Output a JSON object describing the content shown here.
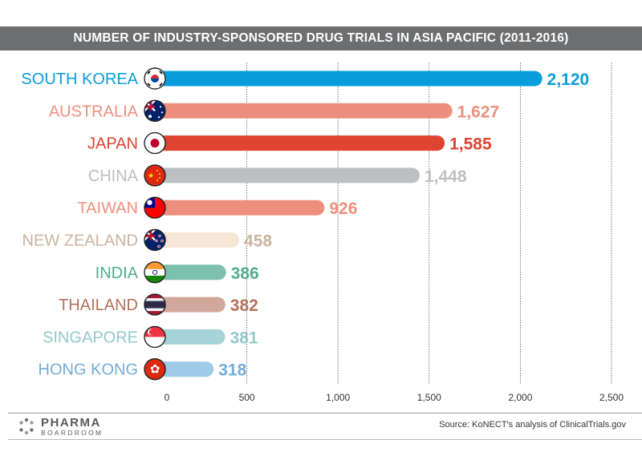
{
  "header": {
    "title": "NUMBER OF INDUSTRY-SPONSORED DRUG TRIALS IN ASIA PACIFIC (2011-2016)"
  },
  "footer": {
    "logo_top": "PHARMA",
    "logo_bottom": "BOARDROOM",
    "source": "Source: KoNECT's analysis of ClinicalTrials.gov"
  },
  "chart_data": {
    "type": "bar",
    "orientation": "horizontal",
    "title": "NUMBER OF INDUSTRY-SPONSORED DRUG TRIALS IN ASIA PACIFIC (2011-2016)",
    "categories": [
      "SOUTH KOREA",
      "AUSTRALIA",
      "JAPAN",
      "CHINA",
      "TAIWAN",
      "NEW ZEALAND",
      "INDIA",
      "THAILAND",
      "SINGAPORE",
      "HONG KONG"
    ],
    "values": [
      2120,
      1627,
      1585,
      1448,
      926,
      458,
      386,
      382,
      381,
      318
    ],
    "value_labels": [
      "2,120",
      "1,627",
      "1,585",
      "1,448",
      "926",
      "458",
      "386",
      "382",
      "381",
      "318"
    ],
    "colors": [
      "#0a9ddc",
      "#ee8f7d",
      "#de4431",
      "#bdbfc3",
      "#ee8f7d",
      "#f5e6d5",
      "#7dc0ab",
      "#d2a89c",
      "#a6d3d7",
      "#9dcbe8"
    ],
    "label_colors": [
      "#0a9ddc",
      "#ee8f7d",
      "#de4431",
      "#bdbfc3",
      "#ee8f7d",
      "#c9b49e",
      "#52ac8e",
      "#b6705c",
      "#93c8cd",
      "#73acd6"
    ],
    "flags": [
      "south-korea-flag-icon",
      "australia-flag-icon",
      "japan-flag-icon",
      "china-flag-icon",
      "taiwan-flag-icon",
      "new-zealand-flag-icon",
      "india-flag-icon",
      "thailand-flag-icon",
      "singapore-flag-icon",
      "hong-kong-flag-icon"
    ],
    "xlim": [
      0,
      2500
    ],
    "xticks": [
      0,
      500,
      1000,
      1500,
      2000,
      2500
    ],
    "xtick_labels": [
      "0",
      "500",
      "1,000",
      "1,500",
      "2,000",
      "2,500"
    ],
    "grid": true,
    "xlabel": "",
    "ylabel": ""
  }
}
